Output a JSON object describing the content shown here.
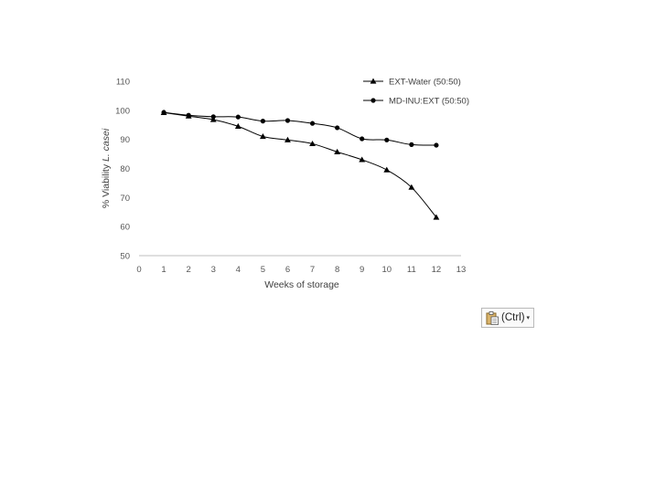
{
  "chart_data": {
    "type": "line",
    "xlabel": "Weeks of storage",
    "ylabel_prefix": "% Viability ",
    "ylabel_italic": "L. casei",
    "xlim": [
      0,
      13
    ],
    "ylim": [
      50,
      110
    ],
    "x_ticks": [
      "0",
      "1",
      "2",
      "3",
      "4",
      "5",
      "6",
      "7",
      "8",
      "9",
      "10",
      "11",
      "12",
      "13"
    ],
    "y_ticks": [
      "50",
      "60",
      "70",
      "80",
      "90",
      "100",
      "110"
    ],
    "grid": false,
    "legend_position": "top-right",
    "series": [
      {
        "name": "EXT-Water (50:50)",
        "marker": "triangle",
        "x": [
          1,
          2,
          3,
          4,
          5,
          6,
          7,
          8,
          9,
          10,
          11,
          12
        ],
        "values": [
          99.2,
          98.0,
          96.8,
          94.5,
          91.0,
          89.8,
          88.5,
          85.7,
          83.0,
          79.5,
          73.5,
          63.2
        ]
      },
      {
        "name": "MD-INU:EXT (50:50)",
        "marker": "circle",
        "x": [
          1,
          2,
          3,
          4,
          5,
          6,
          7,
          8,
          9,
          10,
          11,
          12
        ],
        "values": [
          99.3,
          98.3,
          97.8,
          97.7,
          96.3,
          96.5,
          95.5,
          94.0,
          90.2,
          89.8,
          88.2,
          88.0
        ]
      }
    ]
  },
  "paste_options": {
    "label": "(Ctrl)",
    "icon": "clipboard-icon",
    "caret": "▾"
  }
}
